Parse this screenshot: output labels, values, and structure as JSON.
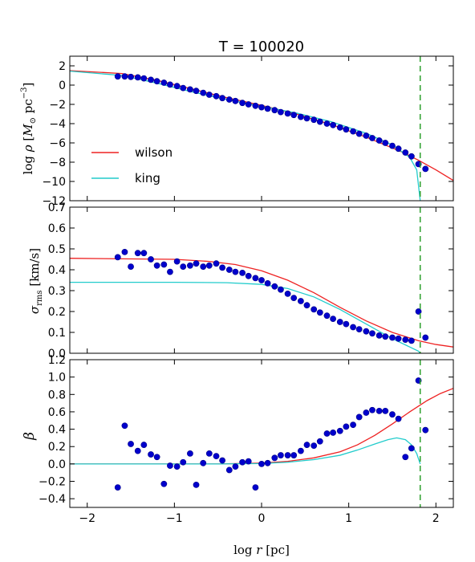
{
  "title": "T = 100020",
  "xlabel": "log r [pc]",
  "xlim": [
    -2.2,
    2.2
  ],
  "x_ticks": [
    -2,
    -1,
    0,
    1,
    2
  ],
  "x_tick_labels": [
    "−2",
    "−1",
    "0",
    "1",
    "2"
  ],
  "vline": {
    "x": 1.82,
    "color": "#2ca02c",
    "style": "dashed"
  },
  "colors": {
    "wilson": "#ee2222",
    "king": "#22cccc",
    "points": "#0000cc",
    "point_edge": "#000088"
  },
  "chart_data": [
    {
      "type": "line",
      "panel": "density",
      "ylabel": "log ρ [M⊙ pc⁻³]",
      "ylim": [
        -12,
        3
      ],
      "y_ticks": [
        2,
        0,
        -2,
        -4,
        -6,
        -8,
        -10,
        -12
      ],
      "y_tick_labels": [
        "2",
        "0",
        "−2",
        "−4",
        "−6",
        "−8",
        "−10",
        "−12"
      ],
      "legend": {
        "placement": "lower-left",
        "entries": [
          "wilson",
          "king"
        ]
      },
      "series": [
        {
          "name": "wilson",
          "color": "#ee2222",
          "x": [
            -2.2,
            -1.6,
            -1.2,
            -0.8,
            -0.4,
            0.0,
            0.4,
            0.8,
            1.2,
            1.6,
            1.8,
            2.0,
            2.2
          ],
          "y": [
            1.5,
            1.2,
            0.5,
            -0.4,
            -1.3,
            -2.1,
            -3.0,
            -4.1,
            -5.4,
            -6.9,
            -7.8,
            -8.8,
            -9.9
          ]
        },
        {
          "name": "king",
          "color": "#22cccc",
          "x": [
            -2.2,
            -1.6,
            -1.2,
            -0.8,
            -0.4,
            0.0,
            0.4,
            0.8,
            1.2,
            1.5,
            1.7,
            1.78,
            1.82
          ],
          "y": [
            1.45,
            1.0,
            0.2,
            -0.7,
            -1.5,
            -2.2,
            -2.9,
            -3.8,
            -5.0,
            -6.2,
            -7.5,
            -8.8,
            -12.0
          ]
        }
      ],
      "points": {
        "x": [
          -1.65,
          -1.57,
          -1.5,
          -1.42,
          -1.35,
          -1.27,
          -1.2,
          -1.12,
          -1.05,
          -0.97,
          -0.9,
          -0.82,
          -0.75,
          -0.67,
          -0.6,
          -0.52,
          -0.45,
          -0.37,
          -0.3,
          -0.22,
          -0.15,
          -0.07,
          0.0,
          0.07,
          0.15,
          0.22,
          0.3,
          0.37,
          0.45,
          0.52,
          0.6,
          0.67,
          0.75,
          0.82,
          0.9,
          0.97,
          1.05,
          1.12,
          1.2,
          1.27,
          1.35,
          1.42,
          1.5,
          1.57,
          1.65,
          1.72,
          1.8,
          1.88
        ],
        "y": [
          0.9,
          0.9,
          0.85,
          0.8,
          0.7,
          0.55,
          0.4,
          0.25,
          0.05,
          -0.1,
          -0.3,
          -0.45,
          -0.6,
          -0.8,
          -1.0,
          -1.15,
          -1.35,
          -1.5,
          -1.65,
          -1.85,
          -2.0,
          -2.15,
          -2.3,
          -2.45,
          -2.6,
          -2.8,
          -2.95,
          -3.1,
          -3.3,
          -3.45,
          -3.6,
          -3.8,
          -4.0,
          -4.15,
          -4.4,
          -4.6,
          -4.8,
          -5.05,
          -5.25,
          -5.5,
          -5.75,
          -6.0,
          -6.3,
          -6.6,
          -7.0,
          -7.4,
          -8.2,
          -8.7
        ]
      }
    },
    {
      "type": "line",
      "panel": "velocity-dispersion",
      "ylabel": "σrms [km/s]",
      "ylim": [
        0.0,
        0.7
      ],
      "y_ticks": [
        0.7,
        0.6,
        0.5,
        0.4,
        0.3,
        0.2,
        0.1,
        0.0
      ],
      "y_tick_labels": [
        "0.7",
        "0.6",
        "0.5",
        "0.4",
        "0.3",
        "0.2",
        "0.1",
        "0.0"
      ],
      "series": [
        {
          "name": "wilson",
          "color": "#ee2222",
          "x": [
            -2.2,
            -1.0,
            -0.6,
            -0.3,
            0.0,
            0.3,
            0.6,
            0.9,
            1.2,
            1.5,
            1.8,
            2.0,
            2.2
          ],
          "y": [
            0.455,
            0.45,
            0.44,
            0.425,
            0.395,
            0.35,
            0.29,
            0.22,
            0.155,
            0.1,
            0.06,
            0.042,
            0.03
          ]
        },
        {
          "name": "king",
          "color": "#22cccc",
          "x": [
            -2.2,
            -1.0,
            -0.4,
            0.0,
            0.3,
            0.6,
            0.9,
            1.2,
            1.5,
            1.7,
            1.8,
            1.82
          ],
          "y": [
            0.34,
            0.34,
            0.338,
            0.33,
            0.31,
            0.27,
            0.21,
            0.14,
            0.07,
            0.03,
            0.01,
            0.0
          ]
        }
      ],
      "points": {
        "x": [
          -1.65,
          -1.57,
          -1.5,
          -1.42,
          -1.35,
          -1.27,
          -1.2,
          -1.12,
          -1.05,
          -0.97,
          -0.9,
          -0.82,
          -0.75,
          -0.67,
          -0.6,
          -0.52,
          -0.45,
          -0.37,
          -0.3,
          -0.22,
          -0.15,
          -0.07,
          0.0,
          0.07,
          0.15,
          0.22,
          0.3,
          0.37,
          0.45,
          0.52,
          0.6,
          0.67,
          0.75,
          0.82,
          0.9,
          0.97,
          1.05,
          1.12,
          1.2,
          1.27,
          1.35,
          1.42,
          1.5,
          1.57,
          1.65,
          1.72,
          1.8,
          1.88
        ],
        "y": [
          0.46,
          0.485,
          0.415,
          0.48,
          0.48,
          0.45,
          0.42,
          0.425,
          0.39,
          0.44,
          0.415,
          0.42,
          0.43,
          0.415,
          0.42,
          0.43,
          0.41,
          0.4,
          0.39,
          0.385,
          0.37,
          0.36,
          0.35,
          0.335,
          0.32,
          0.305,
          0.285,
          0.265,
          0.25,
          0.23,
          0.21,
          0.195,
          0.18,
          0.165,
          0.15,
          0.14,
          0.125,
          0.115,
          0.105,
          0.095,
          0.085,
          0.08,
          0.075,
          0.07,
          0.065,
          0.06,
          0.2,
          0.075
        ]
      }
    },
    {
      "type": "line",
      "panel": "anisotropy",
      "ylabel": "β",
      "ylim": [
        -0.5,
        1.2
      ],
      "y_ticks": [
        1.2,
        1.0,
        0.8,
        0.6,
        0.4,
        0.2,
        0.0,
        -0.2,
        -0.4
      ],
      "y_tick_labels": [
        "1.2",
        "1.0",
        "0.8",
        "0.6",
        "0.4",
        "0.2",
        "0.0",
        "−0.2",
        "−0.4"
      ],
      "series": [
        {
          "name": "wilson",
          "color": "#ee2222",
          "x": [
            -2.2,
            -1.0,
            -0.5,
            0.0,
            0.3,
            0.6,
            0.9,
            1.1,
            1.3,
            1.5,
            1.7,
            1.9,
            2.05,
            2.2
          ],
          "y": [
            0.0,
            0.0,
            0.0,
            0.01,
            0.03,
            0.07,
            0.14,
            0.22,
            0.33,
            0.46,
            0.6,
            0.73,
            0.81,
            0.87
          ]
        },
        {
          "name": "king",
          "color": "#22cccc",
          "x": [
            -2.2,
            -1.0,
            -0.5,
            0.0,
            0.3,
            0.6,
            0.9,
            1.1,
            1.3,
            1.45,
            1.55,
            1.65,
            1.72,
            1.78,
            1.82
          ],
          "y": [
            0.0,
            0.0,
            0.0,
            0.005,
            0.02,
            0.05,
            0.1,
            0.16,
            0.23,
            0.28,
            0.3,
            0.28,
            0.22,
            0.12,
            0.0
          ]
        }
      ],
      "points": {
        "x": [
          -1.65,
          -1.57,
          -1.5,
          -1.42,
          -1.35,
          -1.27,
          -1.2,
          -1.12,
          -1.05,
          -0.97,
          -0.9,
          -0.82,
          -0.75,
          -0.67,
          -0.6,
          -0.52,
          -0.45,
          -0.37,
          -0.3,
          -0.22,
          -0.15,
          -0.07,
          0.0,
          0.07,
          0.15,
          0.22,
          0.3,
          0.37,
          0.45,
          0.52,
          0.6,
          0.67,
          0.75,
          0.82,
          0.9,
          0.97,
          1.05,
          1.12,
          1.2,
          1.27,
          1.35,
          1.42,
          1.5,
          1.57,
          1.65,
          1.72,
          1.8,
          1.88
        ],
        "y": [
          -0.27,
          0.44,
          0.23,
          0.15,
          0.22,
          0.11,
          0.08,
          -0.23,
          -0.02,
          -0.03,
          0.02,
          0.12,
          -0.24,
          0.01,
          0.12,
          0.09,
          0.04,
          -0.07,
          -0.03,
          0.02,
          0.03,
          -0.27,
          0.0,
          0.01,
          0.07,
          0.1,
          0.1,
          0.1,
          0.15,
          0.22,
          0.21,
          0.26,
          0.35,
          0.36,
          0.38,
          0.43,
          0.45,
          0.54,
          0.59,
          0.62,
          0.61,
          0.61,
          0.57,
          0.52,
          0.08,
          0.18,
          0.96,
          0.39
        ]
      }
    }
  ]
}
